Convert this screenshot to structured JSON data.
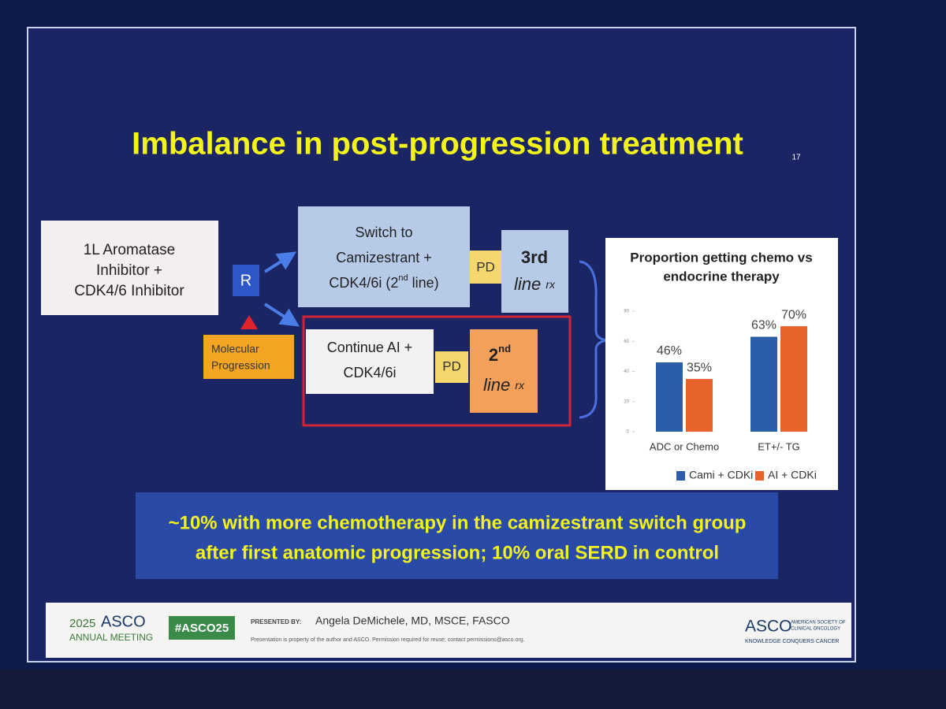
{
  "slide": {
    "title": "Imbalance in post-progression treatment",
    "number": "17"
  },
  "nodes": {
    "start": {
      "lines": [
        "1L Aromatase",
        "Inhibitor +",
        "CDK4/6 Inhibitor"
      ]
    },
    "randomize": {
      "label": "R"
    },
    "molecular": {
      "lines": [
        "Molecular",
        "Progression"
      ]
    },
    "switch": {
      "lines": [
        "Switch to",
        "Camizestrant +",
        [
          "CDK4/6i (2",
          "nd",
          " line)"
        ]
      ]
    },
    "pd_top": {
      "label": "PD"
    },
    "third": {
      "lines": [
        "3rd",
        [
          "line ",
          "rx"
        ]
      ]
    },
    "continue": {
      "lines": [
        "Continue AI +",
        "CDK4/6i"
      ]
    },
    "pd_bottom": {
      "label": "PD"
    },
    "second": {
      "lines": [
        [
          "2",
          "nd"
        ],
        [
          "line ",
          "rx"
        ]
      ]
    }
  },
  "chart_data": {
    "type": "bar",
    "title": [
      "Proportion getting chemo vs",
      "endocrine therapy"
    ],
    "categories": [
      "ADC or Chemo",
      "ET+/- TG"
    ],
    "series": [
      {
        "name": "Cami + CDKi",
        "color": "#2a5ea8",
        "values": [
          46,
          63
        ],
        "value_labels": [
          "46%",
          "63%"
        ]
      },
      {
        "name": "AI + CDKi",
        "color": "#e8622c",
        "values": [
          35,
          70
        ],
        "value_labels": [
          "35%",
          "70%"
        ]
      }
    ],
    "ylim": [
      0,
      80
    ],
    "yticks": [
      0,
      20,
      40,
      60,
      80
    ],
    "grid": false,
    "legend": "bottom"
  },
  "banner": {
    "lines": [
      "~10% with more chemotherapy in the camizestrant switch group",
      "after first anatomic progression; 10% oral SERD in control"
    ]
  },
  "footer": {
    "year": "2025",
    "meeting": "ASCO",
    "meeting_sub": "ANNUAL MEETING",
    "hashtag": "#ASCO25",
    "presented_by": "PRESENTED BY:",
    "presenter": "Angela DeMichele, MD, MSCE, FASCO",
    "notice": "Presentation is property of the author and ASCO. Permission required for reuse; contact permissions@asco.org.",
    "org": "ASCO",
    "org_full": [
      "AMERICAN SOCIETY OF",
      "CLINICAL ONCOLOGY"
    ],
    "tagline": "KNOWLEDGE CONQUERS CANCER"
  }
}
